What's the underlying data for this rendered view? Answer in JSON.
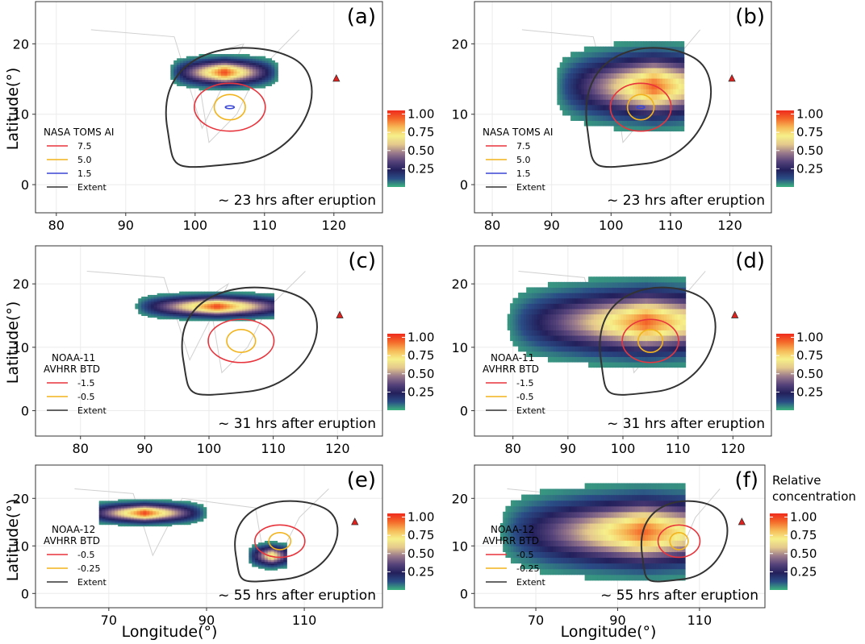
{
  "chart_data": {
    "type": "heatmap",
    "xlabel": "Longitude(°)",
    "ylabel": "Latitude(°)",
    "colorbar_title": "Relative concentration",
    "colorbar_ticks": [
      1.0,
      0.75,
      0.5,
      0.25
    ],
    "colorbar_tick_labels": [
      "1.00",
      "0.75",
      "0.50",
      "0.25"
    ],
    "colorbar_range": [
      0,
      1.05
    ],
    "colorbar_colors": [
      "#3db37f",
      "#2a4c86",
      "#23205c",
      "#55427a",
      "#9a7a8c",
      "#e4c88c",
      "#f6f08a",
      "#f6ba58",
      "#f46a2a",
      "#ee2a1c"
    ],
    "volcano": {
      "lon": 120.35,
      "lat": 15.14,
      "color": "#e4201c"
    },
    "rows": [
      {
        "title": "NASA TOMS AI",
        "annotation": "~ 23 hrs after eruption",
        "xlim": [
          77,
          127
        ],
        "ylim": [
          -4,
          26
        ],
        "xticks": [
          80,
          90,
          100,
          110,
          120
        ],
        "xtick_labels": [
          "80",
          "90",
          "100",
          "110",
          "120"
        ],
        "yticks": [
          0,
          10,
          20
        ],
        "ytick_labels": [
          "0",
          "10",
          "20"
        ],
        "legend": [
          {
            "label": "7.5",
            "color": "#e8343c"
          },
          {
            "label": "5.0",
            "color": "#f2b41c"
          },
          {
            "label": "1.5",
            "color": "#3a46d4"
          },
          {
            "label": "Extent",
            "color": "#333333"
          }
        ]
      },
      {
        "title": "NOAA-11\nAVHRR BTD",
        "title_lines": [
          "NOAA-11",
          "AVHRR BTD"
        ],
        "annotation": "~ 31 hrs after eruption",
        "xlim": [
          73,
          127
        ],
        "ylim": [
          -4,
          26
        ],
        "xticks": [
          80,
          90,
          100,
          110,
          120
        ],
        "xtick_labels": [
          "80",
          "90",
          "100",
          "110",
          "120"
        ],
        "yticks": [
          0,
          10,
          20
        ],
        "ytick_labels": [
          "0",
          "10",
          "20"
        ],
        "legend": [
          {
            "label": "-1.5",
            "color": "#e8343c"
          },
          {
            "label": "-0.5",
            "color": "#f2b41c"
          },
          {
            "label": "Extent",
            "color": "#333333"
          }
        ]
      },
      {
        "title": "NOAA-12\nAVHRR BTD",
        "title_lines": [
          "NOAA-12",
          "AVHRR BTD"
        ],
        "annotation": "~ 55 hrs after eruption",
        "xlim": [
          55,
          126
        ],
        "ylim": [
          -3,
          27
        ],
        "xticks": [
          70,
          90,
          110
        ],
        "xtick_labels": [
          "70",
          "90",
          "110"
        ],
        "yticks": [
          0,
          10,
          20
        ],
        "ytick_labels": [
          "0",
          "10",
          "20"
        ],
        "legend": [
          {
            "label": "-0.5",
            "color": "#e8343c"
          },
          {
            "label": "-0.25",
            "color": "#f2b41c"
          },
          {
            "label": "Extent",
            "color": "#333333"
          }
        ]
      }
    ],
    "panels": [
      {
        "label": "(a)",
        "row": 0,
        "col": 0,
        "plumes": [
          {
            "lon": [
              96,
              112
            ],
            "lat": 16,
            "sigma": 1.0,
            "peak_lon": 104,
            "peak": 0.95
          }
        ]
      },
      {
        "label": "(b)",
        "row": 0,
        "col": 1,
        "plumes": [
          {
            "lon": [
              90,
              112
            ],
            "lat": 14,
            "sigma": 2.5,
            "peak_lon": 107,
            "peak": 0.9
          }
        ]
      },
      {
        "label": "(c)",
        "row": 1,
        "col": 0,
        "plumes": [
          {
            "lon": [
              88,
              110
            ],
            "lat": 16.5,
            "sigma": 0.9,
            "peak_lon": 101,
            "peak": 0.95
          }
        ]
      },
      {
        "label": "(d)",
        "row": 1,
        "col": 1,
        "plumes": [
          {
            "lon": [
              78,
              111
            ],
            "lat": 14,
            "sigma": 2.8,
            "peak_lon": 104,
            "peak": 0.9
          }
        ]
      },
      {
        "label": "(e)",
        "row": 2,
        "col": 0,
        "plumes": [
          {
            "lon": [
              68,
              90
            ],
            "lat": 17,
            "sigma": 1.1,
            "peak_lon": 77,
            "peak": 0.95
          },
          {
            "lon": [
              98,
              106
            ],
            "lat": 8,
            "sigma": 1.2,
            "peak_lon": 103,
            "peak": 0.7
          }
        ]
      },
      {
        "label": "(f)",
        "row": 2,
        "col": 1,
        "plumes": [
          {
            "lon": [
              60,
              106
            ],
            "lat": 13,
            "sigma": 4.0,
            "peak_lon": 96,
            "peak": 0.9
          }
        ]
      }
    ]
  }
}
